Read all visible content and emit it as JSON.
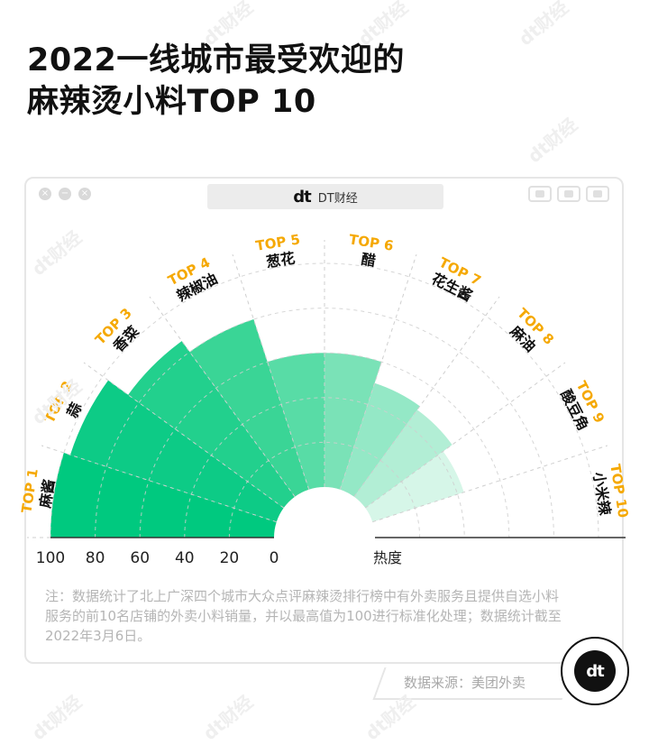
{
  "title": {
    "line1": "2022一线城市最受欢迎的",
    "line2": "麻辣烫小料TOP 10"
  },
  "window": {
    "brand_logo": "dt",
    "brand_text": "DT财经",
    "close_glyph": "×",
    "minimize_glyph": "−",
    "maximize_glyph": "×"
  },
  "chart_data": {
    "type": "polar-bar",
    "xlabel": "热度",
    "axis_ticks": [
      "100",
      "80",
      "60",
      "40",
      "20",
      "0"
    ],
    "rmax": 100,
    "ranks": [
      "TOP 1",
      "TOP 2",
      "TOP 3",
      "TOP 4",
      "TOP 5",
      "TOP 6",
      "TOP 7",
      "TOP 8",
      "TOP 9",
      "TOP 10"
    ],
    "categories": [
      "麻酱",
      "蒜",
      "香菜",
      "辣椒油",
      "葱花",
      "醋",
      "花生酱",
      "麻油",
      "酸豆角",
      "小米辣"
    ],
    "values": [
      100,
      97,
      86,
      80,
      60,
      60,
      50,
      48,
      43,
      0
    ],
    "colors": [
      "#00c97f",
      "#0dcb86",
      "#22d08d",
      "#3ad596",
      "#58dca6",
      "#7ae2b7",
      "#94e8c6",
      "#b2eed5",
      "#d6f6e8",
      "#ffffff"
    ]
  },
  "note": "注：数据统计了北上广深四个城市大众点评麻辣烫排行榜中有外卖服务且提供自选小料服务的前10名店铺的外卖小料销量，并以最高值为100进行标准化处理；数据统计截至2022年3月6日。",
  "source": "数据来源：美团外卖",
  "badge_logo": "dt",
  "watermark": "dt财经",
  "accent_color": "#f5a800"
}
